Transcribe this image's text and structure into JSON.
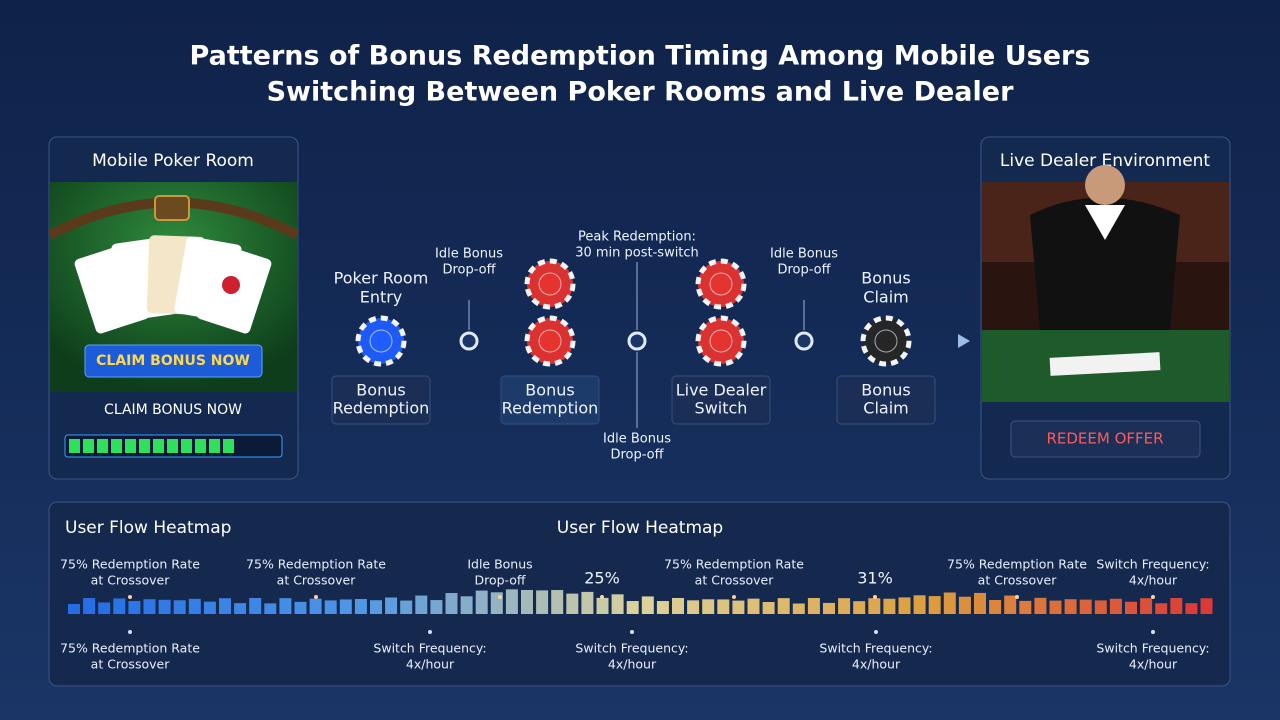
{
  "header": {
    "title": [
      "Patterns of Bonus Redemption Timing Among Mobile Users",
      "Switching Between Poker Rooms and Live Dealer"
    ]
  },
  "left_panel": {
    "title": "Mobile Poker Room",
    "button": "CLAIM BONUS NOW",
    "caption": "CLAIM BONUS NOW"
  },
  "right_panel": {
    "title": "Live Dealer Environment",
    "button": "REDEEM OFFER"
  },
  "timeline": {
    "stops": [
      {
        "above": [
          "Poker Room",
          "Entry"
        ],
        "box": [
          "Bonus",
          "Redemption"
        ]
      },
      {
        "above": [
          "Idle Bonus",
          "Drop-off"
        ]
      },
      {
        "box": [
          "Bonus",
          "Redemption"
        ]
      },
      {
        "above": [
          "Peak Redemption:",
          "30 min post-switch"
        ],
        "below": [
          "Idle Bonus",
          "Drop-off"
        ]
      },
      {
        "box": [
          "Live Dealer",
          "Switch"
        ]
      },
      {
        "above": [
          "Idle Bonus",
          "Drop-off"
        ]
      },
      {
        "above": [
          "Bonus",
          "Claim"
        ],
        "box": [
          "Bonus",
          "Claim"
        ]
      }
    ]
  },
  "heatmap": {
    "title_left": "User Flow Heatmap",
    "title_center": "User Flow Heatmap",
    "annotations_top": [
      {
        "lines": [
          "75% Redemption Rate",
          "at Crossover"
        ]
      },
      {
        "lines": [
          "75% Redemption Rate",
          "at Crossover"
        ]
      },
      {
        "lines": [
          "Idle Bonus",
          "Drop-off"
        ]
      },
      {
        "lines": [
          "25%"
        ]
      },
      {
        "lines": [
          "75% Redemption Rate",
          "at Crossover"
        ]
      },
      {
        "lines": [
          "31%"
        ]
      },
      {
        "lines": [
          "75% Redemption Rate",
          "at Crossover"
        ]
      },
      {
        "lines": [
          "Switch Frequency:",
          "4x/hour"
        ]
      }
    ],
    "annotations_bottom": [
      {
        "lines": [
          "75% Redemption Rate",
          "at Crossover"
        ]
      },
      {
        "lines": [
          "Switch Frequency:",
          "4x/hour"
        ]
      },
      {
        "lines": [
          "Switch Frequency:",
          "4x/hour"
        ]
      },
      {
        "lines": [
          "Switch Frequency:",
          "4x/hour"
        ]
      },
      {
        "lines": [
          "Switch Frequency:",
          "4x/hour"
        ]
      }
    ]
  }
}
